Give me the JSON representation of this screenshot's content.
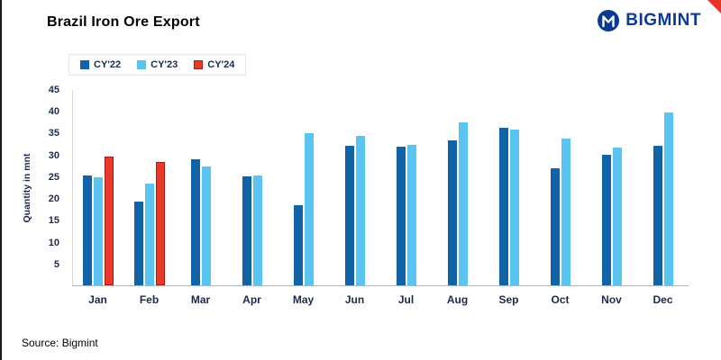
{
  "header": {
    "title": "Brazil Iron Ore Export",
    "brand": "BIGMINT"
  },
  "source": "Source:  Bigmint",
  "colors": {
    "brand_navy": "#0b3b91",
    "cy22_blue": "#1262a8",
    "cy23_light_blue": "#5bc5f2",
    "cy24_red": "#e8392b",
    "cy24_red_border": "#a61c12"
  },
  "chart_data": {
    "type": "bar",
    "title": "Brazil Iron Ore Export",
    "xlabel": "",
    "ylabel": "Quantity in mnt",
    "ylim": [
      0,
      45
    ],
    "yticks": [
      45,
      40,
      35,
      30,
      25,
      20,
      15,
      10,
      5
    ],
    "grid": false,
    "legend_position": "top-left",
    "categories": [
      "Jan",
      "Feb",
      "Mar",
      "Apr",
      "May",
      "Jun",
      "Jul",
      "Aug",
      "Sep",
      "Oct",
      "Nov",
      "Dec"
    ],
    "series": [
      {
        "name": "CY'22",
        "color": "#1262a8",
        "values": [
          25.4,
          19.3,
          29.0,
          25.0,
          18.5,
          32.1,
          32.0,
          33.4,
          36.3,
          26.9,
          30.1,
          32.2
        ]
      },
      {
        "name": "CY'23",
        "color": "#5bc5f2",
        "values": [
          24.8,
          23.5,
          27.3,
          25.4,
          35.1,
          34.5,
          32.3,
          37.6,
          35.8,
          33.9,
          31.7,
          39.8
        ]
      },
      {
        "name": "CY'24",
        "color": "#e8392b",
        "border": "#a61c12",
        "values": [
          29.6,
          28.5,
          null,
          null,
          null,
          null,
          null,
          null,
          null,
          null,
          null,
          null
        ]
      }
    ]
  }
}
